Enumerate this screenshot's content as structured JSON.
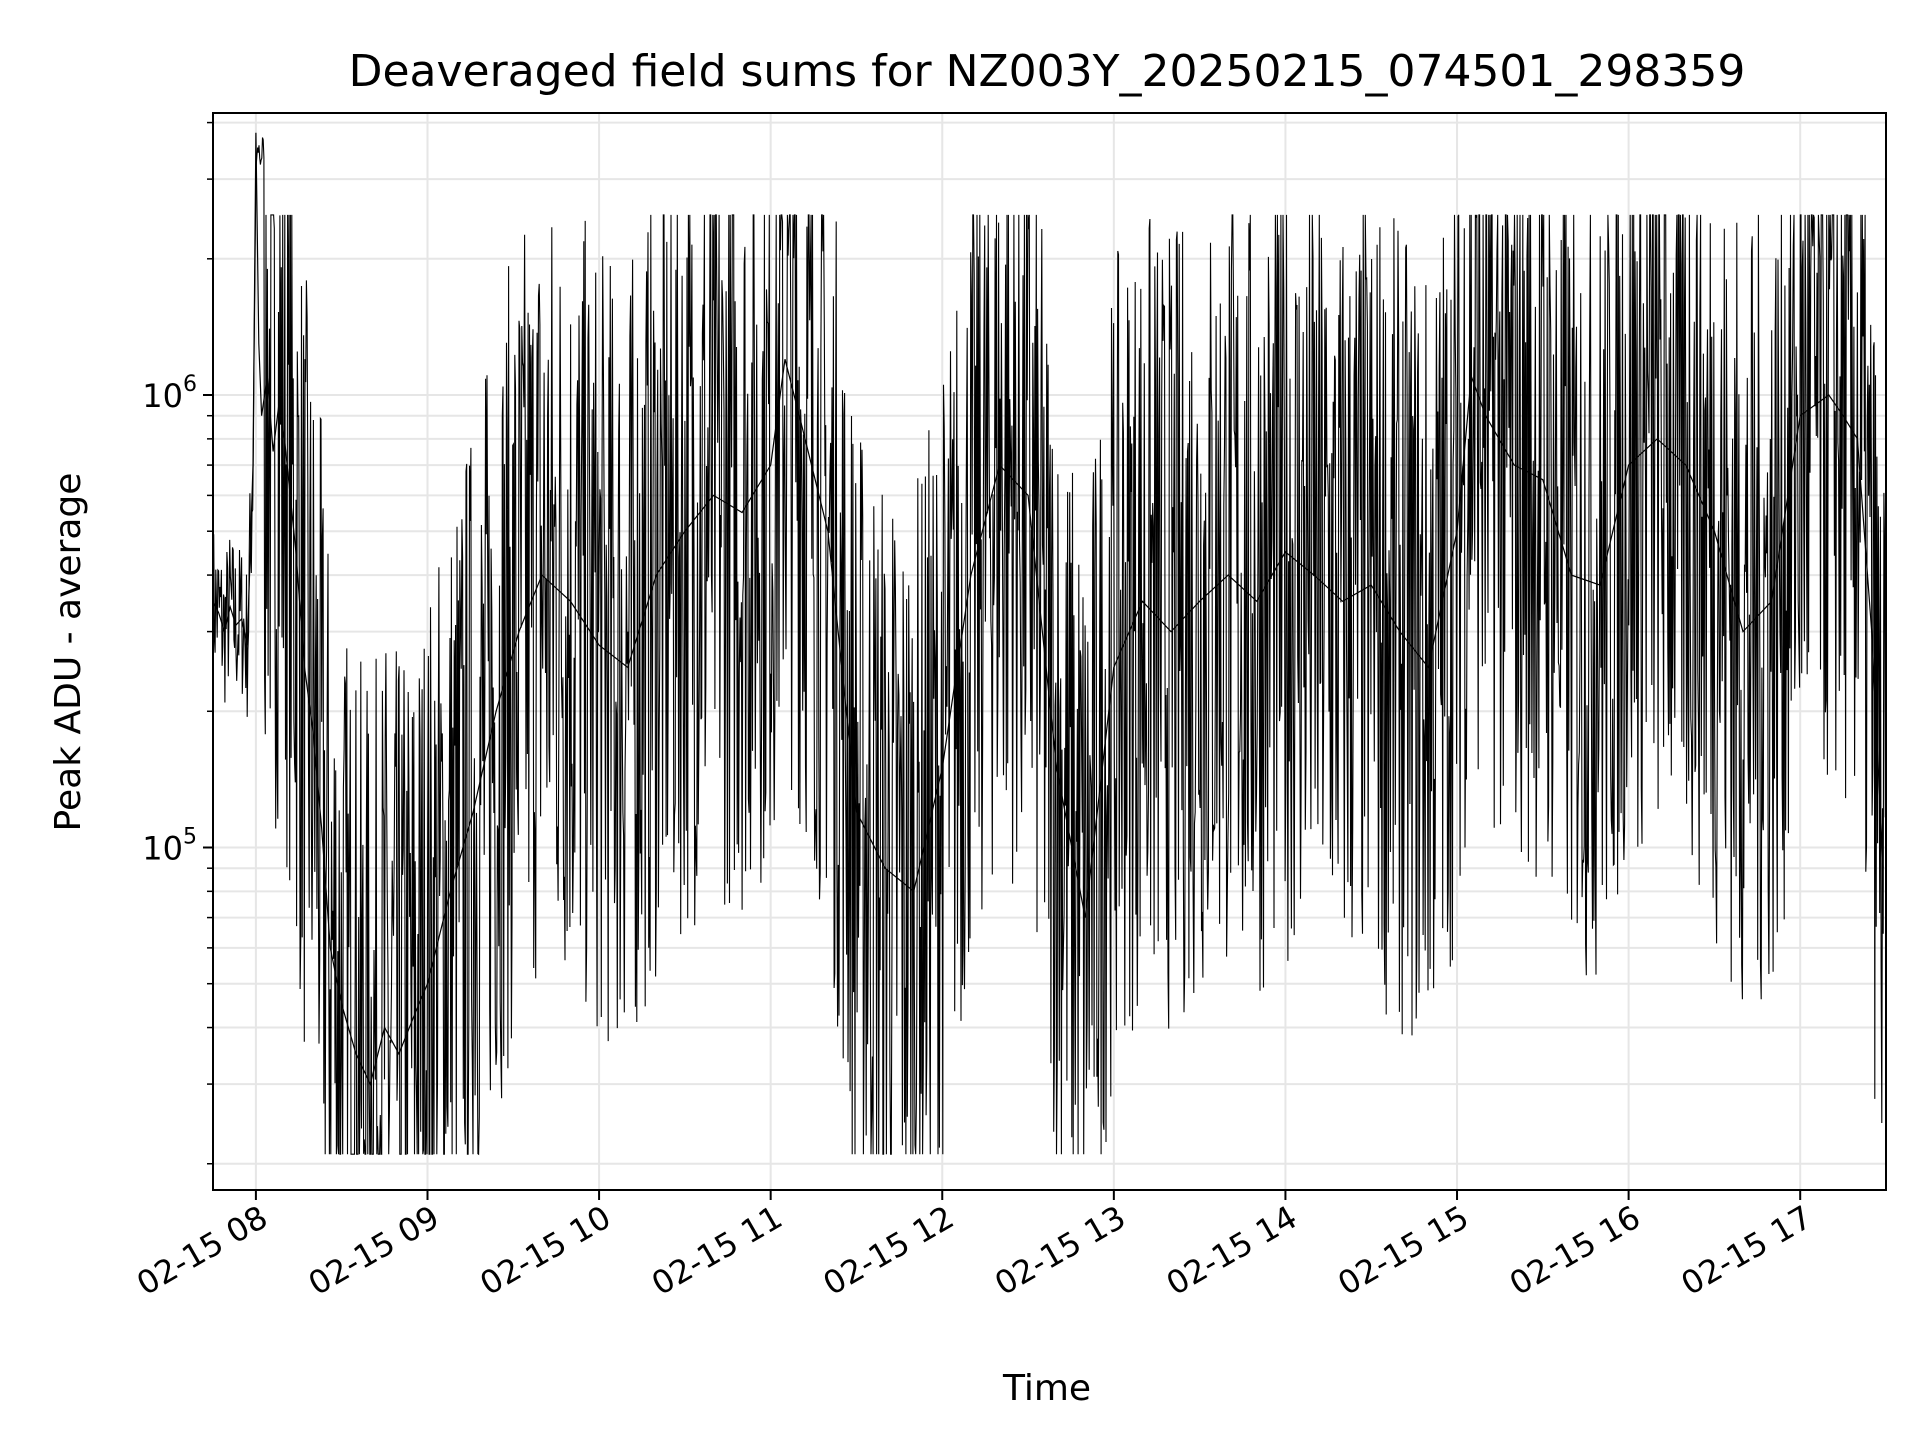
{
  "chart_data": {
    "type": "line",
    "title": "Deaveraged field sums for NZ003Y_20250215_074501_298359",
    "xlabel": "Time",
    "ylabel": "Peak ADU - average",
    "x_axis": {
      "type": "datetime",
      "range": [
        "2025-02-15T07:45:00",
        "2025-02-15T17:30:00"
      ],
      "tick_labels": [
        "02-15 08",
        "02-15 09",
        "02-15 10",
        "02-15 11",
        "02-15 12",
        "02-15 13",
        "02-15 14",
        "02-15 15",
        "02-15 16",
        "02-15 17"
      ]
    },
    "y_axis": {
      "scale": "log",
      "range": [
        17500,
        4200000
      ],
      "tick_labels": [
        {
          "base": "10",
          "exp": "5",
          "value": 100000
        },
        {
          "base": "10",
          "exp": "6",
          "value": 1000000
        }
      ]
    },
    "grid": true,
    "line_color": "#000000",
    "series": [
      {
        "x": [
          "2025-02-15T07:45",
          "2025-02-15T07:47",
          "2025-02-15T07:49",
          "2025-02-15T07:51",
          "2025-02-15T07:53",
          "2025-02-15T07:55",
          "2025-02-15T07:57",
          "2025-02-15T07:59",
          "2025-02-15T08:00",
          "2025-02-15T08:01",
          "2025-02-15T08:02",
          "2025-02-15T08:04",
          "2025-02-15T08:06",
          "2025-02-15T08:08",
          "2025-02-15T08:10",
          "2025-02-15T08:12",
          "2025-02-15T08:14",
          "2025-02-15T08:17",
          "2025-02-15T08:20",
          "2025-02-15T08:23",
          "2025-02-15T08:26",
          "2025-02-15T08:30",
          "2025-02-15T08:35",
          "2025-02-15T08:40",
          "2025-02-15T08:45",
          "2025-02-15T08:50",
          "2025-02-15T08:55",
          "2025-02-15T09:00",
          "2025-02-15T09:08",
          "2025-02-15T09:16",
          "2025-02-15T09:24",
          "2025-02-15T09:32",
          "2025-02-15T09:40",
          "2025-02-15T09:50",
          "2025-02-15T10:00",
          "2025-02-15T10:10",
          "2025-02-15T10:20",
          "2025-02-15T10:30",
          "2025-02-15T10:40",
          "2025-02-15T10:50",
          "2025-02-15T11:00",
          "2025-02-15T11:05",
          "2025-02-15T11:10",
          "2025-02-15T11:20",
          "2025-02-15T11:30",
          "2025-02-15T11:40",
          "2025-02-15T11:50",
          "2025-02-15T12:00",
          "2025-02-15T12:10",
          "2025-02-15T12:20",
          "2025-02-15T12:30",
          "2025-02-15T12:40",
          "2025-02-15T12:50",
          "2025-02-15T13:00",
          "2025-02-15T13:10",
          "2025-02-15T13:20",
          "2025-02-15T13:30",
          "2025-02-15T13:40",
          "2025-02-15T13:50",
          "2025-02-15T14:00",
          "2025-02-15T14:10",
          "2025-02-15T14:20",
          "2025-02-15T14:30",
          "2025-02-15T14:40",
          "2025-02-15T14:50",
          "2025-02-15T15:00",
          "2025-02-15T15:05",
          "2025-02-15T15:10",
          "2025-02-15T15:20",
          "2025-02-15T15:30",
          "2025-02-15T15:40",
          "2025-02-15T15:50",
          "2025-02-15T16:00",
          "2025-02-15T16:10",
          "2025-02-15T16:20",
          "2025-02-15T16:30",
          "2025-02-15T16:40",
          "2025-02-15T16:50",
          "2025-02-15T17:00",
          "2025-02-15T17:10",
          "2025-02-15T17:15",
          "2025-02-15T17:20",
          "2025-02-15T17:25",
          "2025-02-15T17:29"
        ],
        "y": [
          350000,
          330000,
          300000,
          340000,
          310000,
          320000,
          280000,
          700000,
          3800000,
          1300000,
          900000,
          1100000,
          750000,
          950000,
          800000,
          600000,
          450000,
          250000,
          180000,
          110000,
          60000,
          45000,
          35000,
          30000,
          40000,
          35000,
          42000,
          50000,
          80000,
          120000,
          200000,
          300000,
          400000,
          350000,
          280000,
          250000,
          400000,
          500000,
          600000,
          550000,
          700000,
          1200000,
          900000,
          500000,
          120000,
          90000,
          80000,
          150000,
          400000,
          700000,
          600000,
          150000,
          70000,
          250000,
          350000,
          300000,
          350000,
          400000,
          350000,
          450000,
          400000,
          350000,
          380000,
          300000,
          250000,
          500000,
          1100000,
          900000,
          700000,
          650000,
          400000,
          380000,
          700000,
          800000,
          700000,
          500000,
          300000,
          350000,
          900000,
          1000000,
          900000,
          800000,
          300000,
          90000
        ]
      }
    ]
  }
}
